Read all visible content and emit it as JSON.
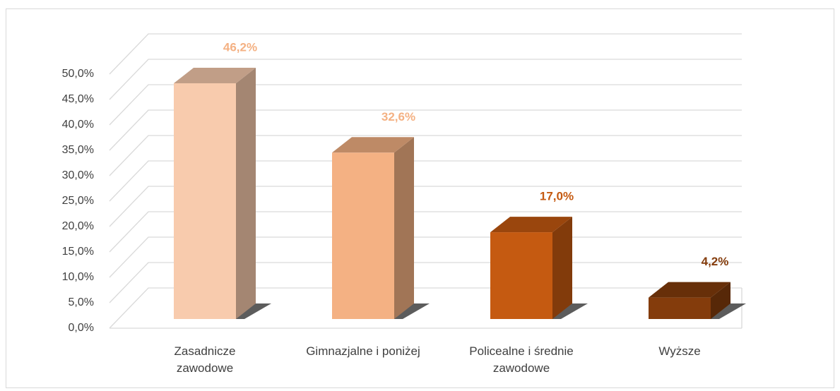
{
  "chart_data": {
    "type": "bar3d",
    "categories": [
      "Zasadnicze zawodowe",
      "Gimnazjalne i poniżej",
      "Policealne i średnie zawodowe",
      "Wyższe"
    ],
    "values": [
      46.2,
      32.6,
      17.0,
      4.2
    ],
    "value_labels": [
      "46,2%",
      "32,6%",
      "17,0%",
      "4,2%"
    ],
    "colors": [
      "#F8CBAD",
      "#F4B183",
      "#C55A11",
      "#843C0C"
    ],
    "ylim": [
      0,
      50
    ],
    "yticks": [
      {
        "value": 0,
        "label": "0,0%"
      },
      {
        "value": 5,
        "label": "5,0%"
      },
      {
        "value": 10,
        "label": "10,0%"
      },
      {
        "value": 15,
        "label": "15,0%"
      },
      {
        "value": 20,
        "label": "20,0%"
      },
      {
        "value": 25,
        "label": "25,0%"
      },
      {
        "value": 30,
        "label": "30,0%"
      },
      {
        "value": 35,
        "label": "35,0%"
      },
      {
        "value": 40,
        "label": "40,0%"
      },
      {
        "value": 45,
        "label": "45,0%"
      },
      {
        "value": 50,
        "label": "50,0%"
      }
    ],
    "grid": true
  }
}
